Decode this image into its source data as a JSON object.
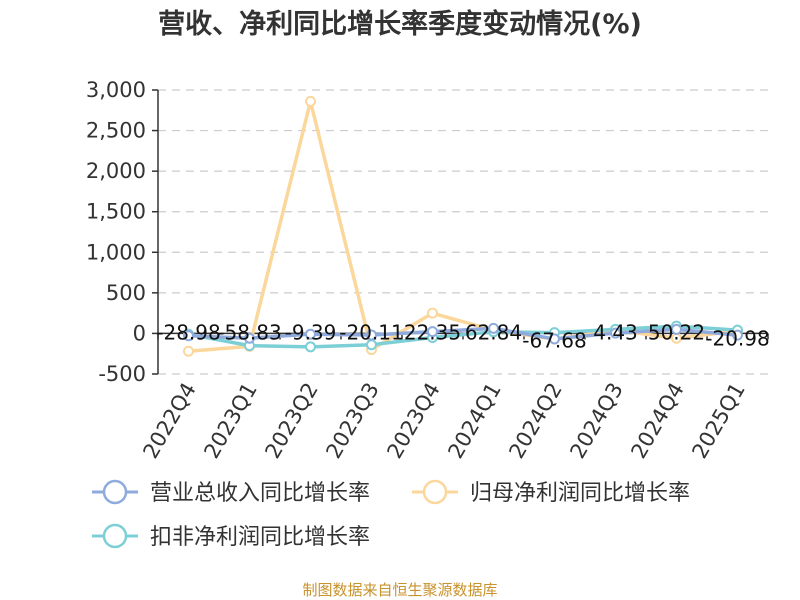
{
  "title": "营收、净利同比增长率季度变动情况(%)",
  "source": "制图数据来自恒生聚源数据库",
  "chart_data": {
    "type": "line",
    "categories": [
      "2022Q4",
      "2023Q1",
      "2023Q2",
      "2023Q3",
      "2023Q4",
      "2024Q1",
      "2024Q2",
      "2024Q3",
      "2024Q4",
      "2025Q1"
    ],
    "ylim": [
      -500,
      3000
    ],
    "yticks": [
      -500,
      0,
      500,
      1000,
      1500,
      2000,
      2500,
      3000
    ],
    "ytick_labels": [
      "-500",
      "0",
      "500",
      "1,000",
      "1,500",
      "2,000",
      "2,500",
      "3,000"
    ],
    "grid": true,
    "legend_position": "bottom",
    "series": [
      {
        "name": "营业总收入同比增长率",
        "color": "#8faadc",
        "values": [
          -28.98,
          -58.83,
          -9.39,
          -20.11,
          22.35,
          62.84,
          -67.68,
          4.43,
          50.22,
          -20.98
        ],
        "labels": [
          "-28.98",
          "-58.83",
          "-9.39",
          "-20.11",
          "22.35",
          "62.84",
          "-67.68",
          "4.43",
          "50.22",
          "-20.98"
        ]
      },
      {
        "name": "归母净利润同比增长率",
        "color": "#fcd79b",
        "values": [
          -220,
          -160,
          2860,
          -200,
          250,
          40,
          -70,
          40,
          -60,
          30
        ]
      },
      {
        "name": "扣非净利润同比增长率",
        "color": "#7ccfd6",
        "values": [
          -10,
          -150,
          -165,
          -140,
          -50,
          20,
          10,
          50,
          90,
          40
        ]
      }
    ]
  }
}
